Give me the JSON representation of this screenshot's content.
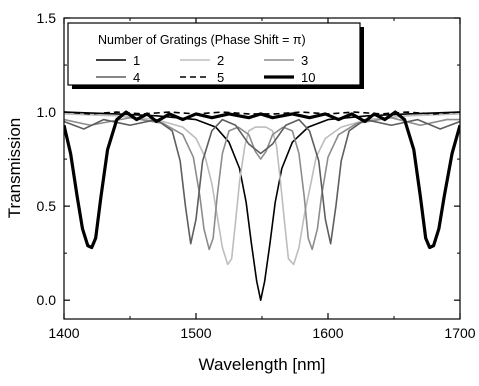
{
  "chart_data": {
    "type": "line",
    "title": "",
    "xlabel": "Wavelength [nm]",
    "ylabel": "Transmission",
    "xlim": [
      1400,
      1700
    ],
    "ylim": [
      -0.1,
      1.5
    ],
    "x_ticks": [
      1400,
      1500,
      1600,
      1700
    ],
    "x_tick_labels": [
      "1400",
      "1500",
      "1600",
      "1700"
    ],
    "y_ticks": [
      0.0,
      0.5,
      1.0,
      1.5
    ],
    "y_tick_labels": [
      "0.0",
      "0.5",
      "1.0",
      "1.5"
    ],
    "grid": false,
    "legend": {
      "title": "Number of Gratings (Phase Shift = π)",
      "placement": "top-left",
      "entries": [
        "1",
        "2",
        "3",
        "4",
        "5",
        "10"
      ]
    },
    "series": [
      {
        "name": "1",
        "color": "#000000",
        "dash": "solid",
        "weight": "thin",
        "x": [
          1400,
          1440,
          1470,
          1500,
          1515,
          1525,
          1533,
          1538,
          1542,
          1546,
          1549,
          1552,
          1556,
          1560,
          1565,
          1573,
          1585,
          1600,
          1630,
          1660,
          1700
        ],
        "y": [
          1.0,
          0.99,
          0.98,
          0.96,
          0.92,
          0.84,
          0.7,
          0.52,
          0.3,
          0.1,
          0.0,
          0.1,
          0.3,
          0.52,
          0.7,
          0.84,
          0.92,
          0.96,
          0.98,
          0.99,
          1.0
        ]
      },
      {
        "name": "2",
        "color": "#bdbdbd",
        "dash": "solid",
        "weight": "thin",
        "x": [
          1400,
          1440,
          1470,
          1490,
          1500,
          1507,
          1512,
          1516,
          1520,
          1524,
          1527,
          1530,
          1533,
          1537,
          1540,
          1545,
          1549,
          1553,
          1558,
          1561,
          1564,
          1567,
          1570,
          1574,
          1578,
          1582,
          1587,
          1591,
          1598,
          1610,
          1630,
          1660,
          1700
        ],
        "y": [
          0.99,
          0.98,
          0.96,
          0.92,
          0.86,
          0.76,
          0.62,
          0.45,
          0.28,
          0.19,
          0.22,
          0.42,
          0.63,
          0.82,
          0.9,
          0.92,
          0.92,
          0.92,
          0.9,
          0.82,
          0.63,
          0.42,
          0.22,
          0.19,
          0.28,
          0.45,
          0.62,
          0.76,
          0.86,
          0.92,
          0.96,
          0.98,
          0.99
        ]
      },
      {
        "name": "3",
        "color": "#8c8c8c",
        "dash": "solid",
        "weight": "thin",
        "x": [
          1400,
          1420,
          1450,
          1475,
          1490,
          1498,
          1503,
          1506,
          1510,
          1513,
          1516,
          1520,
          1525,
          1532,
          1540,
          1545,
          1549,
          1553,
          1558,
          1566,
          1573,
          1578,
          1582,
          1585,
          1588,
          1592,
          1595,
          1600,
          1608,
          1622,
          1648,
          1670,
          1690,
          1700
        ],
        "y": [
          0.96,
          0.93,
          0.97,
          0.94,
          0.88,
          0.76,
          0.55,
          0.38,
          0.27,
          0.33,
          0.55,
          0.78,
          0.9,
          0.92,
          0.88,
          0.79,
          0.75,
          0.79,
          0.88,
          0.92,
          0.9,
          0.78,
          0.55,
          0.33,
          0.27,
          0.38,
          0.55,
          0.76,
          0.88,
          0.94,
          0.97,
          0.93,
          0.96,
          0.96
        ]
      },
      {
        "name": "4",
        "color": "#5e5e5e",
        "dash": "solid",
        "weight": "thin",
        "x": [
          1400,
          1415,
          1430,
          1450,
          1470,
          1482,
          1488,
          1492,
          1496,
          1500,
          1505,
          1512,
          1520,
          1530,
          1540,
          1549,
          1558,
          1568,
          1578,
          1586,
          1593,
          1598,
          1602,
          1606,
          1610,
          1616,
          1628,
          1648,
          1668,
          1685,
          1700
        ],
        "y": [
          0.95,
          0.91,
          0.96,
          0.93,
          0.96,
          0.9,
          0.74,
          0.5,
          0.3,
          0.43,
          0.74,
          0.9,
          0.96,
          0.93,
          0.83,
          0.78,
          0.83,
          0.93,
          0.96,
          0.9,
          0.74,
          0.43,
          0.3,
          0.5,
          0.74,
          0.9,
          0.96,
          0.93,
          0.96,
          0.91,
          0.95
        ]
      },
      {
        "name": "5",
        "color": "#000000",
        "dash": "dashed",
        "weight": "thin",
        "x": [
          1400,
          1420,
          1440,
          1460,
          1480,
          1500,
          1520,
          1540,
          1549,
          1560,
          1580,
          1600,
          1620,
          1640,
          1660,
          1680,
          1700
        ],
        "y": [
          1.0,
          0.99,
          1.0,
          0.99,
          1.0,
          0.99,
          1.0,
          0.99,
          0.99,
          0.99,
          1.0,
          0.99,
          1.0,
          0.99,
          1.0,
          0.99,
          1.0
        ]
      },
      {
        "name": "10",
        "color": "#000000",
        "dash": "solid",
        "weight": "thick",
        "x": [
          1400,
          1405,
          1410,
          1414,
          1418,
          1421,
          1424,
          1428,
          1433,
          1440,
          1447,
          1455,
          1463,
          1470,
          1480,
          1490,
          1500,
          1512,
          1525,
          1540,
          1549,
          1558,
          1573,
          1586,
          1598,
          1608,
          1618,
          1628,
          1635,
          1643,
          1651,
          1658,
          1665,
          1670,
          1674,
          1677,
          1680,
          1684,
          1688,
          1694,
          1700
        ],
        "y": [
          0.93,
          0.78,
          0.55,
          0.38,
          0.29,
          0.28,
          0.33,
          0.55,
          0.8,
          0.96,
          1.0,
          0.96,
          0.99,
          0.95,
          0.99,
          0.96,
          0.99,
          0.97,
          0.99,
          0.97,
          0.99,
          0.97,
          0.99,
          0.97,
          0.99,
          0.96,
          0.99,
          0.95,
          0.99,
          0.96,
          1.0,
          0.96,
          0.8,
          0.55,
          0.33,
          0.28,
          0.29,
          0.38,
          0.55,
          0.78,
          0.93
        ]
      }
    ]
  }
}
